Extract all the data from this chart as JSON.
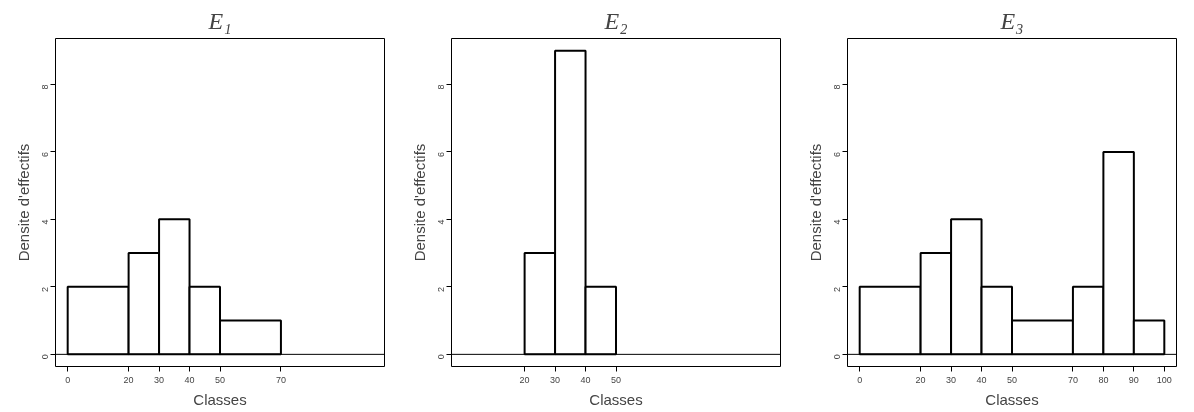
{
  "chart_data": [
    {
      "type": "histogram",
      "title": "E₁",
      "xlabel": "Classes",
      "ylabel": "Densite d'effectifs",
      "bins": [
        0,
        20,
        30,
        40,
        50,
        70
      ],
      "values": [
        2,
        3,
        4,
        2,
        1
      ],
      "xlim": [
        -4,
        104
      ],
      "ylim": [
        -0.36,
        9.36
      ],
      "xticks": [
        0,
        20,
        30,
        40,
        50,
        70
      ],
      "yticks": [
        0,
        2,
        4,
        6,
        8
      ],
      "ref_lines": [
        {
          "axis": "y",
          "value": 0
        }
      ]
    },
    {
      "type": "histogram",
      "title": "E₂",
      "xlabel": "Classes",
      "ylabel": "Densite d'effectifs",
      "bins": [
        20,
        30,
        40,
        50
      ],
      "values": [
        3,
        9,
        2
      ],
      "xlim": [
        -4,
        104
      ],
      "ylim": [
        -0.36,
        9.36
      ],
      "xticks": [
        20,
        30,
        40,
        50
      ],
      "yticks": [
        0,
        2,
        4,
        6,
        8
      ],
      "ref_lines": [
        {
          "axis": "y",
          "value": 0
        }
      ]
    },
    {
      "type": "histogram",
      "title": "E₃",
      "xlabel": "Classes",
      "ylabel": "Densite d'effectifs",
      "bins": [
        0,
        20,
        30,
        40,
        50,
        70,
        80,
        90,
        100
      ],
      "values": [
        2,
        3,
        4,
        2,
        1,
        2,
        6,
        1
      ],
      "xlim": [
        -4,
        104
      ],
      "ylim": [
        -0.36,
        9.36
      ],
      "xticks": [
        0,
        20,
        30,
        40,
        50,
        70,
        80,
        90,
        100
      ],
      "yticks": [
        0,
        2,
        4,
        6,
        8
      ],
      "ref_lines": [
        {
          "axis": "y",
          "value": 0
        }
      ]
    }
  ]
}
